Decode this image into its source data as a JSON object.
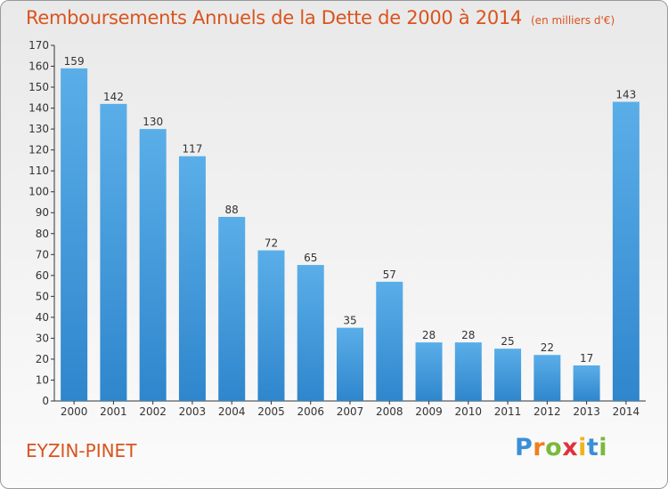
{
  "title": {
    "main": "Remboursements Annuels de la Dette de 2000 à 2014",
    "unit": "(en milliers d'€)"
  },
  "commune": "EYZIN-PINET",
  "logo": {
    "text": "Proxiti",
    "letters": [
      "P",
      "r",
      "o",
      "x",
      "i",
      "t",
      "i"
    ]
  },
  "colors": {
    "title": "#d9541e",
    "bar_light": "#5aaee8",
    "bar_dark": "#2f86cc",
    "axis": "#333333"
  },
  "chart_data": {
    "type": "bar",
    "title": "Remboursements Annuels de la Dette de 2000 à 2014",
    "ylabel": "en milliers d'€",
    "xlabel": "",
    "ylim": [
      0,
      170
    ],
    "ytick_step": 10,
    "grid": false,
    "categories": [
      "2000",
      "2001",
      "2002",
      "2003",
      "2004",
      "2005",
      "2006",
      "2007",
      "2008",
      "2009",
      "2010",
      "2011",
      "2012",
      "2013",
      "2014"
    ],
    "values": [
      159,
      142,
      130,
      117,
      88,
      72,
      65,
      35,
      57,
      28,
      28,
      25,
      22,
      17,
      143
    ]
  }
}
